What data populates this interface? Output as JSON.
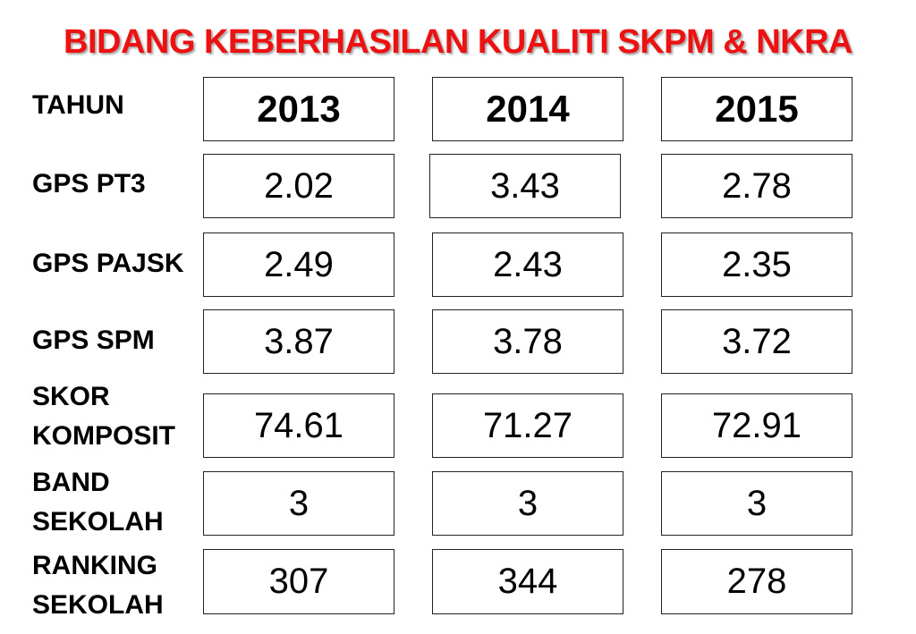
{
  "title": "BIDANG KEBERHASILAN KUALITI SKPM & NKRA",
  "header": {
    "label": "TAHUN",
    "years": [
      "2013",
      "2014",
      "2015"
    ]
  },
  "rows": [
    {
      "label_lines": [
        "GPS PT3"
      ],
      "values": [
        "2.02",
        "3.43",
        "2.78"
      ]
    },
    {
      "label_lines": [
        "GPS PAJSK"
      ],
      "values": [
        "2.49",
        "2.43",
        "2.35"
      ]
    },
    {
      "label_lines": [
        "GPS SPM"
      ],
      "values": [
        "3.87",
        "3.78",
        "3.72"
      ]
    },
    {
      "label_lines": [
        "SKOR",
        "KOMPOSIT"
      ],
      "values": [
        "74.61",
        "71.27",
        "72.91"
      ]
    },
    {
      "label_lines": [
        "BAND",
        "SEKOLAH"
      ],
      "values": [
        "3",
        "3",
        "3"
      ]
    },
    {
      "label_lines": [
        "RANKING",
        "SEKOLAH"
      ],
      "values": [
        "307",
        "344",
        "278"
      ]
    }
  ]
}
